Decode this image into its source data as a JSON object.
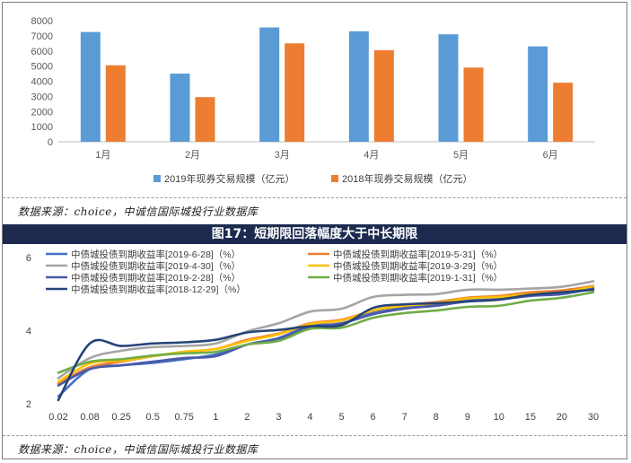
{
  "source_top": "数据来源：choice，中诚信国际城投行业数据库",
  "source_bottom": "数据来源：choice，中诚信国际城投行业数据库",
  "figure_title": "图17：短期限回落幅度大于中长期限",
  "chart_data": [
    {
      "type": "bar",
      "title": "",
      "categories": [
        "1月",
        "2月",
        "3月",
        "4月",
        "5月",
        "6月"
      ],
      "series": [
        {
          "name": "2019年现券交易规模（亿元）",
          "color": "#5b9bd5",
          "values": [
            7250,
            4500,
            7550,
            7300,
            7100,
            6300
          ]
        },
        {
          "name": "2018年现券交易规模（亿元）",
          "color": "#ed7d31",
          "values": [
            5050,
            2950,
            6500,
            6050,
            4900,
            3900
          ]
        }
      ],
      "yticks": [
        "0",
        "1000",
        "2000",
        "3000",
        "4000",
        "5000",
        "6000",
        "7000",
        "8000"
      ],
      "ylim": [
        0,
        8000
      ],
      "legend_position": "bottom"
    },
    {
      "type": "line",
      "title": "图17：短期限回落幅度大于中长期限",
      "x": [
        "0.02",
        "0.08",
        "0.25",
        "0.5",
        "0.75",
        "1",
        "2",
        "3",
        "4",
        "5",
        "6",
        "7",
        "8",
        "9",
        "10",
        "15",
        "20",
        "30"
      ],
      "yticks": [
        "2",
        "4",
        "6"
      ],
      "ylim": [
        2,
        6
      ],
      "legend_position": "top",
      "series": [
        {
          "name": "中债城投债到期收益率[2019-6-28]（%）",
          "color": "#4472c4",
          "values": [
            2.2,
            2.95,
            3.05,
            3.12,
            3.22,
            3.35,
            3.62,
            3.8,
            4.15,
            4.28,
            4.5,
            4.65,
            4.72,
            4.82,
            4.88,
            4.98,
            5.05,
            5.22
          ]
        },
        {
          "name": "中债城投债到期收益率[2019-5-31]（%）",
          "color": "#ed7d31",
          "values": [
            2.55,
            3.0,
            3.15,
            3.3,
            3.42,
            3.5,
            3.75,
            3.92,
            4.2,
            4.3,
            4.55,
            4.7,
            4.78,
            4.9,
            4.95,
            5.05,
            5.1,
            5.22
          ]
        },
        {
          "name": "中债城投债到期收益率[2019-4-30]（%）",
          "color": "#a5a5a5",
          "values": [
            2.7,
            3.25,
            3.45,
            3.55,
            3.58,
            3.65,
            3.98,
            4.2,
            4.52,
            4.6,
            4.92,
            4.98,
            5.0,
            5.12,
            5.12,
            5.15,
            5.2,
            5.35
          ]
        },
        {
          "name": "中债城投债到期收益率[2019-3-29]（%）",
          "color": "#ffc000",
          "values": [
            2.6,
            3.1,
            3.18,
            3.3,
            3.42,
            3.5,
            3.72,
            3.9,
            4.18,
            4.28,
            4.55,
            4.68,
            4.75,
            4.88,
            4.92,
            5.0,
            5.05,
            5.2
          ]
        },
        {
          "name": "中债城投债到期收益率[2019-2-28]（%）",
          "color": "#4a5aa8",
          "values": [
            2.5,
            2.95,
            3.05,
            3.15,
            3.25,
            3.3,
            3.62,
            3.78,
            4.1,
            4.2,
            4.45,
            4.6,
            4.68,
            4.8,
            4.85,
            4.95,
            5.0,
            5.15
          ]
        },
        {
          "name": "中债城投债到期收益率[2019-1-31]（%）",
          "color": "#70ad47",
          "values": [
            2.85,
            3.15,
            3.22,
            3.32,
            3.38,
            3.42,
            3.62,
            3.72,
            4.05,
            4.08,
            4.35,
            4.48,
            4.55,
            4.65,
            4.68,
            4.82,
            4.9,
            5.05
          ]
        },
        {
          "name": "中债城投债到期收益率[2018-12-29]（%）",
          "color": "#264478",
          "values": [
            2.1,
            3.65,
            3.58,
            3.65,
            3.68,
            3.75,
            3.95,
            4.02,
            4.12,
            4.15,
            4.62,
            4.72,
            4.75,
            4.8,
            4.85,
            4.98,
            5.05,
            5.12
          ]
        }
      ]
    }
  ]
}
